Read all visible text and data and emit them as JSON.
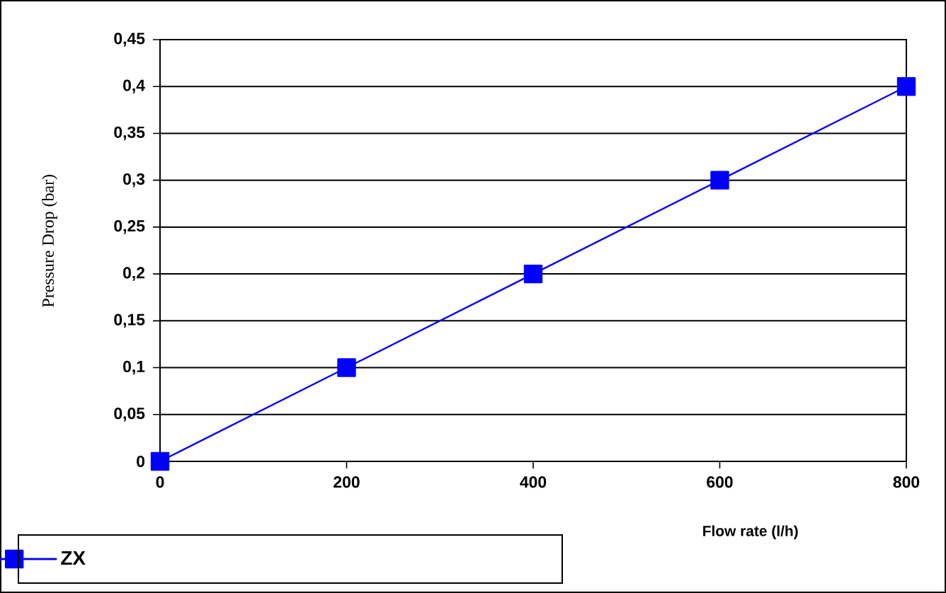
{
  "chart_data": {
    "type": "line",
    "xlabel": "Flow rate (l/h)",
    "ylabel": "Pressure Drop (bar)",
    "x": [
      0,
      200,
      400,
      600,
      800
    ],
    "series": [
      {
        "name": "ZX",
        "color": "#0000ff",
        "values": [
          0,
          0.1,
          0.2,
          0.3,
          0.4
        ]
      }
    ],
    "xlim": [
      0,
      800
    ],
    "xticks": [
      0,
      200,
      400,
      600,
      800
    ],
    "ylim": [
      0,
      0.45
    ],
    "yticks": [
      {
        "value": 0,
        "label": "0"
      },
      {
        "value": 0.05,
        "label": "0,05"
      },
      {
        "value": 0.1,
        "label": "0,1"
      },
      {
        "value": 0.15,
        "label": "0,15"
      },
      {
        "value": 0.2,
        "label": "0,2"
      },
      {
        "value": 0.25,
        "label": "0,25"
      },
      {
        "value": 0.3,
        "label": "0,3"
      },
      {
        "value": 0.35,
        "label": "0,35"
      },
      {
        "value": 0.4,
        "label": "0,4"
      },
      {
        "value": 0.45,
        "label": "0,45"
      }
    ],
    "grid": "y",
    "legend": "bottom left",
    "marker": "square",
    "line_style": "solid"
  }
}
